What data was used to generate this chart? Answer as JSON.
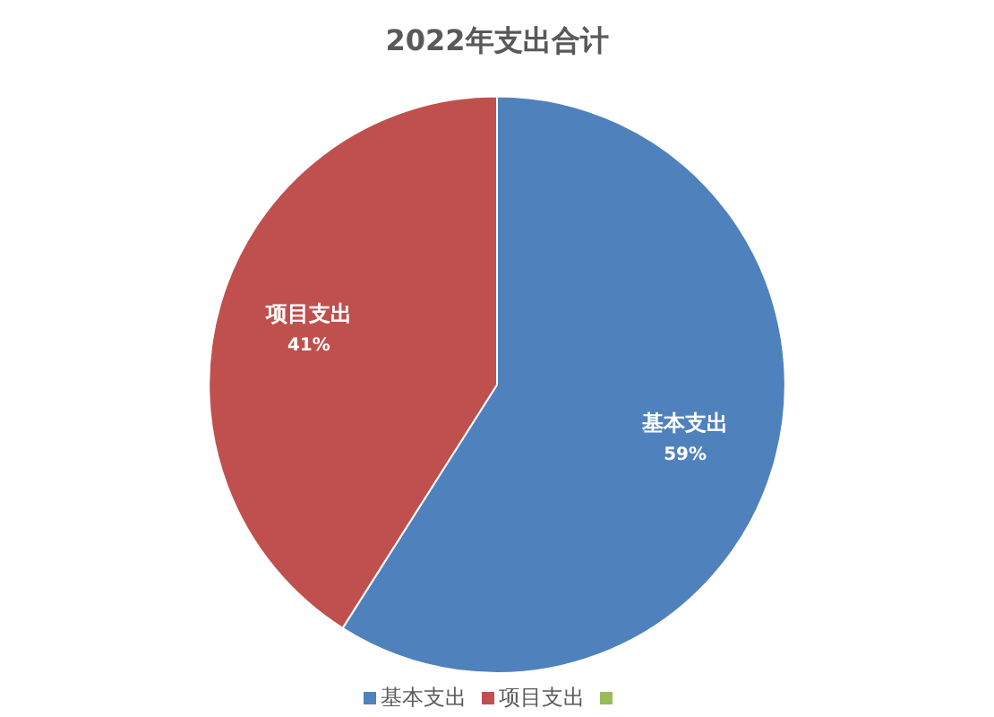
{
  "chart_data": {
    "type": "pie",
    "title": "2022年支出合计",
    "categories": [
      "基本支出",
      "项目支出",
      null
    ],
    "values": [
      59,
      41,
      0
    ],
    "value_labels": [
      "59%",
      "41%",
      null
    ],
    "colors": [
      "#4f81bd",
      "#c0504d",
      "#9bbb59"
    ],
    "legend": "bottom"
  }
}
